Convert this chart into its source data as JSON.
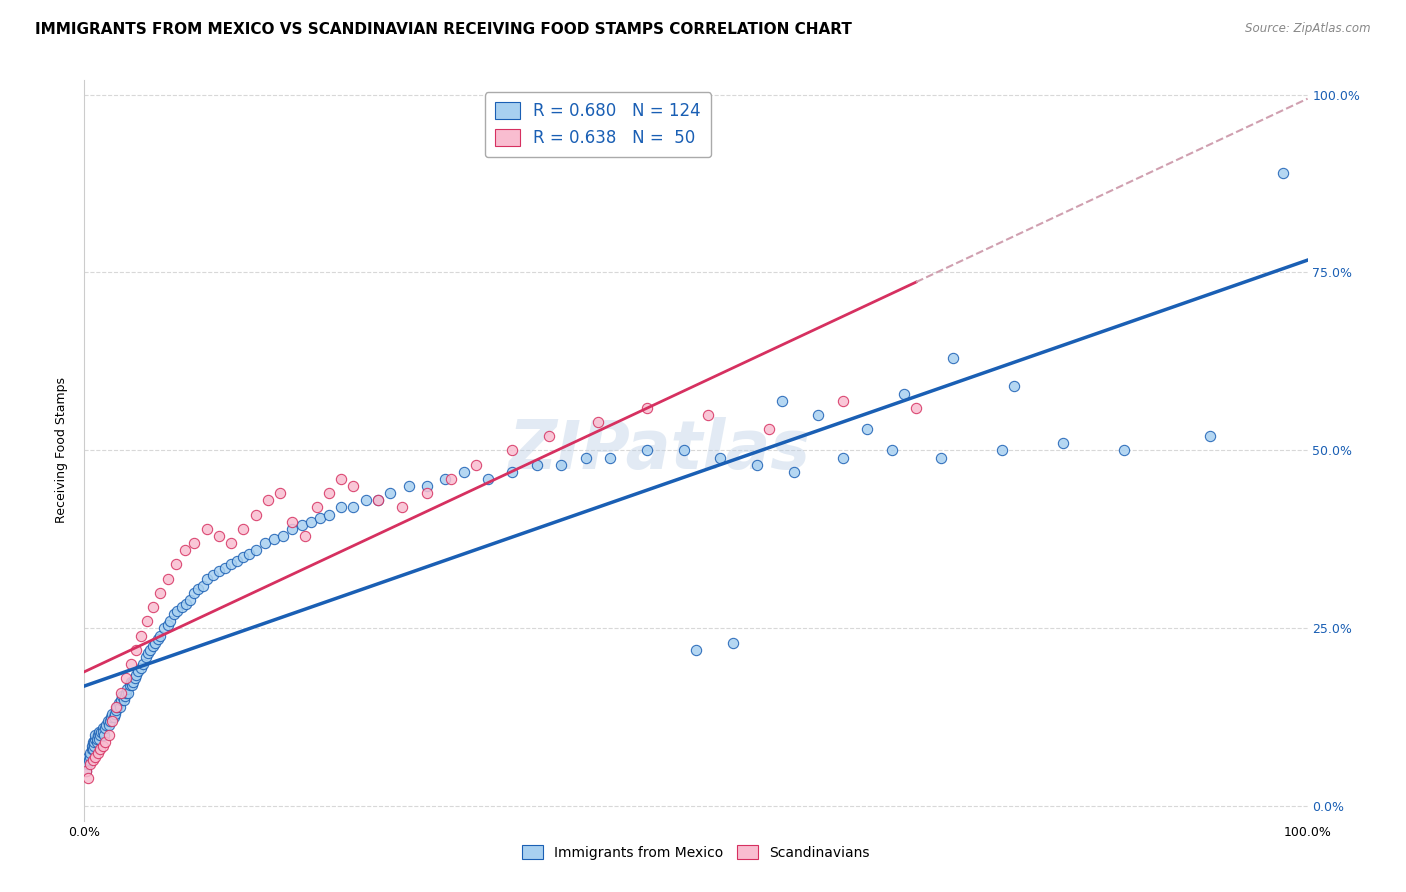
{
  "title": "IMMIGRANTS FROM MEXICO VS SCANDINAVIAN RECEIVING FOOD STAMPS CORRELATION CHART",
  "source": "Source: ZipAtlas.com",
  "ylabel": "Receiving Food Stamps",
  "legend_label_mexico": "Immigrants from Mexico",
  "legend_label_scand": "Scandinavians",
  "R_mexico": 0.68,
  "N_mexico": 124,
  "R_scand": 0.638,
  "N_scand": 50,
  "scatter_mexico_color": "#a8d0f0",
  "scatter_scand_color": "#f9bdd0",
  "line_mexico_color": "#1a5fb4",
  "line_scand_color": "#d63060",
  "line_scand_ext_color": "#d0a0b0",
  "watermark": "ZIPatlas",
  "background_color": "#ffffff",
  "grid_color": "#d8d8d8",
  "title_fontsize": 11,
  "axis_label_fontsize": 9,
  "mexico_x": [
    0.001,
    0.002,
    0.003,
    0.004,
    0.005,
    0.005,
    0.006,
    0.006,
    0.007,
    0.007,
    0.008,
    0.008,
    0.009,
    0.009,
    0.01,
    0.01,
    0.011,
    0.012,
    0.012,
    0.013,
    0.014,
    0.015,
    0.015,
    0.016,
    0.017,
    0.018,
    0.019,
    0.02,
    0.021,
    0.022,
    0.023,
    0.024,
    0.025,
    0.026,
    0.027,
    0.028,
    0.029,
    0.03,
    0.031,
    0.032,
    0.033,
    0.034,
    0.035,
    0.036,
    0.037,
    0.038,
    0.039,
    0.04,
    0.041,
    0.042,
    0.044,
    0.046,
    0.048,
    0.05,
    0.052,
    0.054,
    0.056,
    0.058,
    0.06,
    0.062,
    0.065,
    0.068,
    0.07,
    0.073,
    0.076,
    0.08,
    0.083,
    0.086,
    0.09,
    0.093,
    0.097,
    0.1,
    0.105,
    0.11,
    0.115,
    0.12,
    0.125,
    0.13,
    0.135,
    0.14,
    0.148,
    0.155,
    0.162,
    0.17,
    0.178,
    0.185,
    0.193,
    0.2,
    0.21,
    0.22,
    0.23,
    0.24,
    0.25,
    0.265,
    0.28,
    0.295,
    0.31,
    0.33,
    0.35,
    0.37,
    0.39,
    0.41,
    0.43,
    0.46,
    0.49,
    0.52,
    0.55,
    0.58,
    0.62,
    0.66,
    0.7,
    0.75,
    0.8,
    0.85,
    0.92,
    0.98,
    0.5,
    0.53,
    0.57,
    0.6,
    0.64,
    0.67,
    0.71,
    0.76
  ],
  "mexico_y": [
    0.05,
    0.06,
    0.07,
    0.065,
    0.07,
    0.075,
    0.08,
    0.085,
    0.09,
    0.08,
    0.085,
    0.09,
    0.095,
    0.1,
    0.09,
    0.095,
    0.1,
    0.095,
    0.105,
    0.1,
    0.105,
    0.11,
    0.105,
    0.1,
    0.11,
    0.115,
    0.12,
    0.115,
    0.12,
    0.125,
    0.13,
    0.125,
    0.13,
    0.135,
    0.14,
    0.145,
    0.14,
    0.15,
    0.155,
    0.15,
    0.155,
    0.16,
    0.165,
    0.16,
    0.17,
    0.175,
    0.17,
    0.175,
    0.18,
    0.185,
    0.19,
    0.195,
    0.2,
    0.21,
    0.215,
    0.22,
    0.225,
    0.23,
    0.235,
    0.24,
    0.25,
    0.255,
    0.26,
    0.27,
    0.275,
    0.28,
    0.285,
    0.29,
    0.3,
    0.305,
    0.31,
    0.32,
    0.325,
    0.33,
    0.335,
    0.34,
    0.345,
    0.35,
    0.355,
    0.36,
    0.37,
    0.375,
    0.38,
    0.39,
    0.395,
    0.4,
    0.405,
    0.41,
    0.42,
    0.42,
    0.43,
    0.43,
    0.44,
    0.45,
    0.45,
    0.46,
    0.47,
    0.46,
    0.47,
    0.48,
    0.48,
    0.49,
    0.49,
    0.5,
    0.5,
    0.49,
    0.48,
    0.47,
    0.49,
    0.5,
    0.49,
    0.5,
    0.51,
    0.5,
    0.52,
    0.89,
    0.22,
    0.23,
    0.57,
    0.55,
    0.53,
    0.58,
    0.63,
    0.59
  ],
  "scand_x": [
    0.001,
    0.003,
    0.005,
    0.007,
    0.009,
    0.011,
    0.013,
    0.015,
    0.017,
    0.02,
    0.023,
    0.026,
    0.03,
    0.034,
    0.038,
    0.042,
    0.046,
    0.051,
    0.056,
    0.062,
    0.068,
    0.075,
    0.082,
    0.09,
    0.1,
    0.11,
    0.12,
    0.13,
    0.14,
    0.15,
    0.16,
    0.17,
    0.18,
    0.19,
    0.2,
    0.21,
    0.22,
    0.24,
    0.26,
    0.28,
    0.3,
    0.32,
    0.35,
    0.38,
    0.42,
    0.46,
    0.51,
    0.56,
    0.62,
    0.68
  ],
  "scand_y": [
    0.05,
    0.04,
    0.06,
    0.065,
    0.07,
    0.075,
    0.08,
    0.085,
    0.09,
    0.1,
    0.12,
    0.14,
    0.16,
    0.18,
    0.2,
    0.22,
    0.24,
    0.26,
    0.28,
    0.3,
    0.32,
    0.34,
    0.36,
    0.37,
    0.39,
    0.38,
    0.37,
    0.39,
    0.41,
    0.43,
    0.44,
    0.4,
    0.38,
    0.42,
    0.44,
    0.46,
    0.45,
    0.43,
    0.42,
    0.44,
    0.46,
    0.48,
    0.5,
    0.52,
    0.54,
    0.56,
    0.55,
    0.53,
    0.57,
    0.56
  ],
  "xlim": [
    0,
    1.0
  ],
  "ylim": [
    -0.02,
    1.02
  ]
}
